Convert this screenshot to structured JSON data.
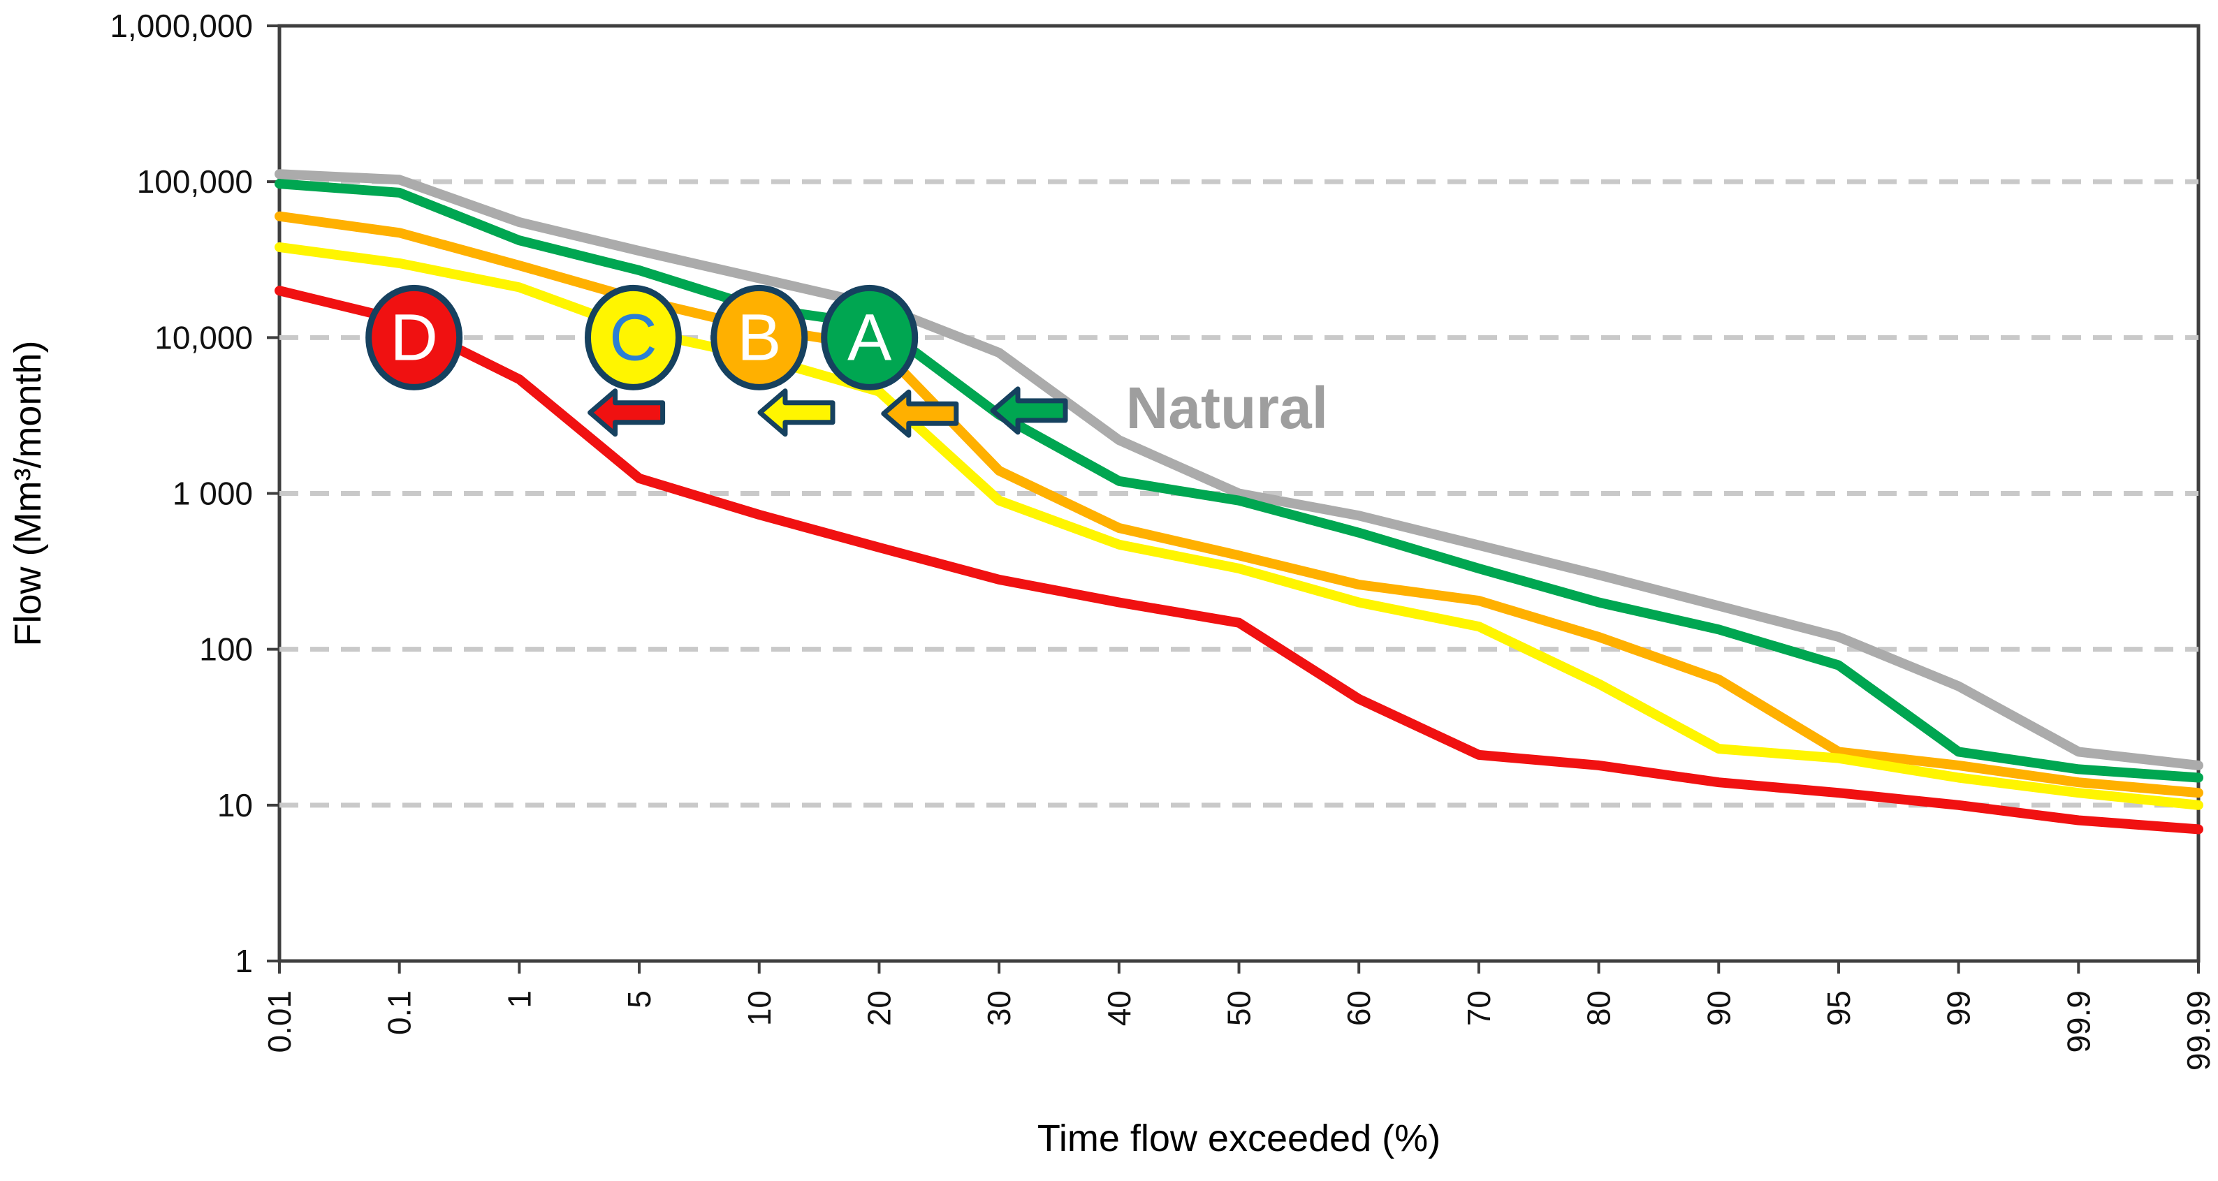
{
  "chart_data": {
    "type": "line",
    "title": "",
    "xlabel": "Time flow exceeded (%)",
    "ylabel": "Flow (Mm³/month)",
    "x_scale": "probability-categorical (17 evenly spaced tick categories)",
    "y_scale": "log10",
    "ylim": [
      1,
      1000000
    ],
    "grid": "horizontal dashed gridlines at powers of 10",
    "legend_position": "none (labels drawn on chart)",
    "x_ticks": [
      {
        "v": 0.01,
        "label": "0.01"
      },
      {
        "v": 0.1,
        "label": "0.1"
      },
      {
        "v": 1,
        "label": "1"
      },
      {
        "v": 5,
        "label": "5"
      },
      {
        "v": 10,
        "label": "10"
      },
      {
        "v": 20,
        "label": "20"
      },
      {
        "v": 30,
        "label": "30"
      },
      {
        "v": 40,
        "label": "40"
      },
      {
        "v": 50,
        "label": "50"
      },
      {
        "v": 60,
        "label": "60"
      },
      {
        "v": 70,
        "label": "70"
      },
      {
        "v": 80,
        "label": "80"
      },
      {
        "v": 90,
        "label": "90"
      },
      {
        "v": 95,
        "label": "95"
      },
      {
        "v": 99,
        "label": "99"
      },
      {
        "v": 99.9,
        "label": "99.9"
      },
      {
        "v": 99.99,
        "label": "99.99"
      }
    ],
    "y_ticks": [
      {
        "v": 1000000,
        "label": "1,000,000"
      },
      {
        "v": 100000,
        "label": "100,000"
      },
      {
        "v": 10000,
        "label": "10,000"
      },
      {
        "v": 1000,
        "label": "1 000"
      },
      {
        "v": 100,
        "label": "100"
      },
      {
        "v": 10,
        "label": "10"
      },
      {
        "v": 1,
        "label": "1"
      }
    ],
    "gridline_values": [
      100000,
      10000,
      1000,
      100,
      10
    ],
    "series": [
      {
        "name": "Natural",
        "color": "#ABABAB",
        "points": [
          [
            0.01,
            112000
          ],
          [
            0.1,
            103000
          ],
          [
            1,
            55000
          ],
          [
            5,
            36000
          ],
          [
            10,
            24000
          ],
          [
            20,
            16000
          ],
          [
            30,
            8000
          ],
          [
            40,
            2200
          ],
          [
            50,
            1000
          ],
          [
            60,
            720
          ],
          [
            70,
            465
          ],
          [
            80,
            300
          ],
          [
            90,
            190
          ],
          [
            95,
            120
          ],
          [
            99,
            58
          ],
          [
            99.9,
            22
          ],
          [
            99.99,
            18
          ]
        ]
      },
      {
        "name": "A",
        "color": "#00A651",
        "points": [
          [
            0.01,
            97000
          ],
          [
            0.1,
            85000
          ],
          [
            1,
            42000
          ],
          [
            5,
            27000
          ],
          [
            10,
            15500
          ],
          [
            20,
            12000
          ],
          [
            30,
            3200
          ],
          [
            40,
            1200
          ],
          [
            50,
            900
          ],
          [
            60,
            560
          ],
          [
            70,
            330
          ],
          [
            80,
            200
          ],
          [
            90,
            134
          ],
          [
            95,
            79
          ],
          [
            99,
            22
          ],
          [
            99.9,
            17
          ],
          [
            99.99,
            15
          ]
        ]
      },
      {
        "name": "B",
        "color": "#FFB000",
        "points": [
          [
            0.01,
            60000
          ],
          [
            0.1,
            47000
          ],
          [
            1,
            29000
          ],
          [
            5,
            17500
          ],
          [
            10,
            11500
          ],
          [
            20,
            8700
          ],
          [
            30,
            1400
          ],
          [
            40,
            600
          ],
          [
            50,
            400
          ],
          [
            60,
            260
          ],
          [
            70,
            205
          ],
          [
            80,
            120
          ],
          [
            90,
            64
          ],
          [
            95,
            22
          ],
          [
            99,
            18
          ],
          [
            99.9,
            14
          ],
          [
            99.99,
            12
          ]
        ]
      },
      {
        "name": "C",
        "color": "#FFF500",
        "points": [
          [
            0.01,
            38000
          ],
          [
            0.1,
            30000
          ],
          [
            1,
            21000
          ],
          [
            5,
            11000
          ],
          [
            10,
            7500
          ],
          [
            20,
            4500
          ],
          [
            30,
            900
          ],
          [
            40,
            470
          ],
          [
            50,
            330
          ],
          [
            60,
            200
          ],
          [
            70,
            140
          ],
          [
            80,
            60
          ],
          [
            90,
            23
          ],
          [
            95,
            20
          ],
          [
            99,
            15
          ],
          [
            99.9,
            12
          ],
          [
            99.99,
            10
          ]
        ]
      },
      {
        "name": "D",
        "color": "#F01111",
        "points": [
          [
            0.01,
            20000
          ],
          [
            0.1,
            13000
          ],
          [
            1,
            5400
          ],
          [
            5,
            1250
          ],
          [
            10,
            730
          ],
          [
            20,
            450
          ],
          [
            30,
            280
          ],
          [
            40,
            200
          ],
          [
            50,
            148
          ],
          [
            60,
            48
          ],
          [
            70,
            21
          ],
          [
            80,
            18
          ],
          [
            90,
            14
          ],
          [
            95,
            12
          ],
          [
            99,
            10
          ],
          [
            99.9,
            8
          ],
          [
            99.99,
            7
          ]
        ]
      }
    ],
    "class_markers": [
      {
        "label": "D",
        "x": 0.21,
        "y": 10000,
        "fill": "#F01111",
        "letter_color": "#FFFFFF"
      },
      {
        "label": "C",
        "x": 4.8,
        "y": 10000,
        "fill": "#FFF500",
        "letter_color": "#2B7FD4"
      },
      {
        "label": "B",
        "x": 10,
        "y": 10000,
        "fill": "#FFB000",
        "letter_color": "#FFFFFF"
      },
      {
        "label": "A",
        "x": 19.2,
        "y": 10000,
        "fill": "#00A651",
        "letter_color": "#FFFFFF"
      }
    ],
    "arrows": [
      {
        "direction": "left",
        "x": 4.57,
        "y": 3300,
        "fill": "#F01111"
      },
      {
        "direction": "left",
        "x": 13.1,
        "y": 3300,
        "fill": "#FFF500"
      },
      {
        "direction": "left",
        "x": 23.4,
        "y": 3250,
        "fill": "#FFB000"
      },
      {
        "direction": "left",
        "x": 32.5,
        "y": 3400,
        "fill": "#00A651"
      }
    ],
    "annotations": [
      {
        "text": "Natural",
        "x": 49,
        "y": 3500,
        "color": "#9E9E9E"
      }
    ],
    "colors": {
      "navy_outline": "#16415F",
      "grid": "#C9C9C9",
      "axis": "#3F3F3F",
      "tick_text": "#111111",
      "axis_title_text": "#000000",
      "background": "#FFFFFF"
    }
  }
}
